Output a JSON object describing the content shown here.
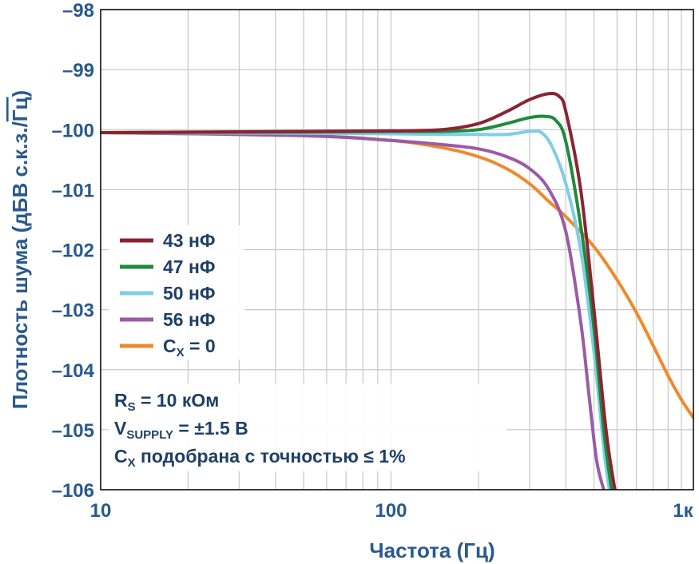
{
  "chart_data": {
    "type": "line",
    "xlabel": "Частота (Гц)",
    "ylabel_main": "Плотность шума (дБВ с.к.з./",
    "ylabel_sqrt": "Гц",
    "ylabel_close": ")",
    "x_scale": "log",
    "xlim": [
      10,
      1100
    ],
    "ylim": [
      -106,
      -98
    ],
    "x_ticks": [
      {
        "value": 10,
        "label": "10"
      },
      {
        "value": 100,
        "label": "100"
      },
      {
        "value": 1000,
        "label": "1к"
      }
    ],
    "y_ticks": [
      {
        "value": -98,
        "label": "–98"
      },
      {
        "value": -99,
        "label": "–99"
      },
      {
        "value": -100,
        "label": "–100"
      },
      {
        "value": -101,
        "label": "–101"
      },
      {
        "value": -102,
        "label": "–102"
      },
      {
        "value": -103,
        "label": "–103"
      },
      {
        "value": -104,
        "label": "–104"
      },
      {
        "value": -105,
        "label": "–105"
      },
      {
        "value": -106,
        "label": "–106"
      }
    ],
    "grid": true,
    "legend_position": "left-middle",
    "series": [
      {
        "name": "43 нФ",
        "color": "#8b2332",
        "x": [
          10,
          50,
          100,
          150,
          200,
          250,
          300,
          350,
          380,
          400,
          450,
          500,
          550,
          590
        ],
        "y": [
          -100.05,
          -100.03,
          -100.02,
          -100.0,
          -99.9,
          -99.7,
          -99.5,
          -99.4,
          -99.45,
          -99.7,
          -101.0,
          -103.0,
          -105.0,
          -106.0
        ]
      },
      {
        "name": "47 нФ",
        "color": "#1f8a3c",
        "x": [
          10,
          50,
          100,
          150,
          200,
          250,
          300,
          340,
          370,
          400,
          450,
          500,
          540,
          575
        ],
        "y": [
          -100.05,
          -100.04,
          -100.03,
          -100.03,
          -100.0,
          -99.9,
          -99.8,
          -99.78,
          -99.85,
          -100.2,
          -101.6,
          -103.3,
          -105.0,
          -106.0
        ]
      },
      {
        "name": "50 нФ",
        "color": "#7fcde6",
        "x": [
          10,
          50,
          100,
          150,
          200,
          250,
          300,
          330,
          360,
          400,
          450,
          500,
          540,
          565
        ],
        "y": [
          -100.05,
          -100.06,
          -100.07,
          -100.08,
          -100.08,
          -100.08,
          -100.03,
          -100.05,
          -100.3,
          -100.9,
          -102.0,
          -103.7,
          -105.3,
          -106.0
        ]
      },
      {
        "name": "56 нФ",
        "color": "#9b5ba5",
        "x": [
          10,
          50,
          100,
          150,
          200,
          250,
          300,
          350,
          400,
          450,
          480,
          510,
          540
        ],
        "y": [
          -100.05,
          -100.1,
          -100.18,
          -100.25,
          -100.32,
          -100.45,
          -100.65,
          -101.0,
          -101.7,
          -103.2,
          -104.4,
          -105.5,
          -106.0
        ]
      },
      {
        "name": "C_X = 0",
        "color": "#ee8a2c",
        "x": [
          10,
          50,
          100,
          150,
          200,
          250,
          300,
          350,
          400,
          500,
          600,
          700,
          800,
          900,
          1000,
          1100
        ],
        "y": [
          -100.05,
          -100.1,
          -100.18,
          -100.3,
          -100.45,
          -100.65,
          -100.9,
          -101.2,
          -101.45,
          -101.95,
          -102.5,
          -103.05,
          -103.6,
          -104.1,
          -104.5,
          -104.8
        ]
      }
    ],
    "legend_labels": [
      {
        "main": "43 нФ",
        "sub": ""
      },
      {
        "main": "47 нФ",
        "sub": ""
      },
      {
        "main": "50 нФ",
        "sub": ""
      },
      {
        "main": "56 нФ",
        "sub": ""
      },
      {
        "main": "C",
        "sub": "X",
        "rest": " = 0"
      }
    ],
    "annotations": [
      {
        "main": "R",
        "sub": "S",
        "rest": " = 10 кОм"
      },
      {
        "main": "V",
        "sub": "SUPPLY",
        "rest": " = ±1.5 В"
      },
      {
        "main": "C",
        "sub": "X",
        "rest": " подобрана с точностью ≤ 1%"
      }
    ]
  },
  "colors": {
    "axis_text": "#2a5a8c",
    "grid": "#c8c8c8",
    "frame": "#000000"
  }
}
